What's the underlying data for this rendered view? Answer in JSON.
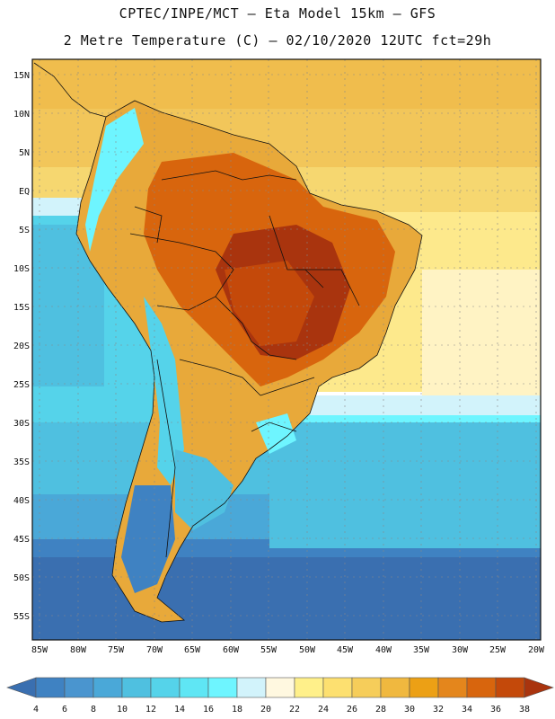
{
  "header": {
    "line1": "CPTEC/INPE/MCT –  Eta Model 15km – GFS",
    "line2": "2 Metre Temperature (C) – 02/10/2020 12UTC fct=29h"
  },
  "map": {
    "lat_labels": [
      "15N",
      "10N",
      "5N",
      "EQ",
      "5S",
      "10S",
      "15S",
      "20S",
      "25S",
      "30S",
      "35S",
      "40S",
      "45S",
      "50S",
      "55S"
    ],
    "lon_labels": [
      "85W",
      "80W",
      "75W",
      "70W",
      "65W",
      "60W",
      "55W",
      "50W",
      "45W",
      "40W",
      "35W",
      "30W",
      "25W",
      "20W"
    ]
  },
  "legend": {
    "levels": [
      "4",
      "6",
      "8",
      "10",
      "12",
      "14",
      "16",
      "18",
      "20",
      "22",
      "24",
      "26",
      "28",
      "30",
      "32",
      "34",
      "36",
      "38"
    ],
    "colors": [
      "#3a6fb0",
      "#3f82c2",
      "#4a95cf",
      "#4aa8d8",
      "#4fc0e0",
      "#55d3ea",
      "#5fe6f4",
      "#6ef5ff",
      "#d2f3fb",
      "#fff8e0",
      "#fff08a",
      "#fde070",
      "#f6cd5a",
      "#f0b83f",
      "#eca015",
      "#e4861c",
      "#d8650d",
      "#c4490a",
      "#a9340e"
    ]
  }
}
